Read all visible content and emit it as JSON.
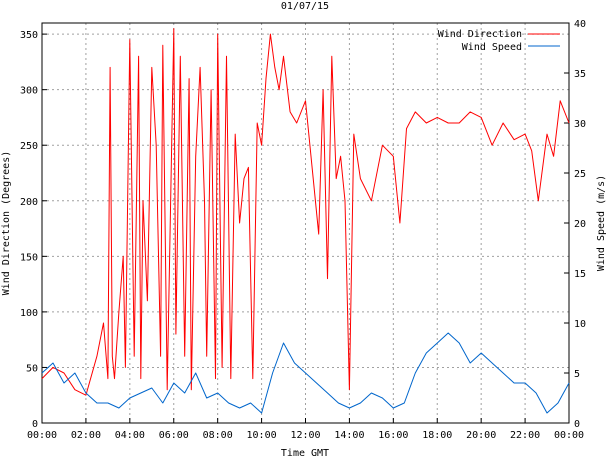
{
  "chart_data": {
    "type": "line",
    "title": "01/07/15",
    "xlabel": "Time GMT",
    "ylabel_left": "Wind Direction (Degrees)",
    "ylabel_right": "Wind Speed (m/s)",
    "x_tick_labels": [
      "00:00",
      "02:00",
      "04:00",
      "06:00",
      "08:00",
      "10:00",
      "12:00",
      "14:00",
      "16:00",
      "18:00",
      "20:00",
      "22:00",
      "00:00"
    ],
    "xlim_hours": [
      0,
      24
    ],
    "ylim_left": [
      0,
      360
    ],
    "ylim_right": [
      0,
      40
    ],
    "y_ticks_left": [
      0,
      50,
      100,
      150,
      200,
      250,
      300,
      350
    ],
    "y_ticks_right": [
      0,
      5,
      10,
      15,
      20,
      25,
      30,
      35,
      40
    ],
    "grid": true,
    "legend_position": "top-right",
    "series": [
      {
        "name": "Wind Direction",
        "axis": "left",
        "color": "#ff0000",
        "x_hours": [
          0,
          0.5,
          1,
          1.5,
          2,
          2.5,
          2.8,
          3,
          3.1,
          3.2,
          3.3,
          3.5,
          3.7,
          3.8,
          4,
          4.2,
          4.4,
          4.5,
          4.6,
          4.8,
          5,
          5.2,
          5.4,
          5.5,
          5.7,
          6,
          6.1,
          6.3,
          6.5,
          6.7,
          6.8,
          7,
          7.2,
          7.4,
          7.5,
          7.7,
          7.9,
          8,
          8.2,
          8.4,
          8.6,
          8.8,
          9,
          9.2,
          9.4,
          9.6,
          9.8,
          10,
          10.2,
          10.4,
          10.6,
          10.8,
          11,
          11.3,
          11.6,
          12,
          12.3,
          12.6,
          12.8,
          13,
          13.2,
          13.4,
          13.6,
          13.8,
          14,
          14.2,
          14.5,
          15,
          15.5,
          16,
          16.3,
          16.6,
          17,
          17.5,
          18,
          18.5,
          19,
          19.5,
          20,
          20.5,
          21,
          21.5,
          22,
          22.3,
          22.6,
          23,
          23.3,
          23.6,
          24
        ],
        "values": [
          40,
          50,
          45,
          30,
          25,
          60,
          90,
          40,
          320,
          60,
          40,
          100,
          150,
          50,
          345,
          60,
          330,
          40,
          200,
          110,
          320,
          250,
          60,
          340,
          30,
          355,
          80,
          330,
          60,
          310,
          30,
          240,
          320,
          200,
          60,
          300,
          40,
          350,
          50,
          330,
          40,
          260,
          180,
          220,
          230,
          40,
          270,
          250,
          310,
          350,
          320,
          300,
          330,
          280,
          270,
          290,
          230,
          170,
          300,
          130,
          330,
          220,
          240,
          200,
          30,
          260,
          220,
          200,
          250,
          240,
          180,
          265,
          280,
          270,
          275,
          270,
          270,
          280,
          275,
          250,
          270,
          255,
          260,
          245,
          200,
          260,
          240,
          290,
          270
        ]
      },
      {
        "name": "Wind Speed",
        "axis": "right",
        "color": "#0066cc",
        "x_hours": [
          0,
          0.5,
          1,
          1.5,
          2,
          2.5,
          3,
          3.5,
          4,
          4.5,
          5,
          5.5,
          6,
          6.5,
          7,
          7.5,
          8,
          8.5,
          9,
          9.5,
          10,
          10.5,
          11,
          11.5,
          12,
          12.5,
          13,
          13.5,
          14,
          14.5,
          15,
          15.5,
          16,
          16.5,
          17,
          17.5,
          18,
          18.5,
          19,
          19.5,
          20,
          20.5,
          21,
          21.5,
          22,
          22.5,
          23,
          23.5,
          24
        ],
        "values": [
          5,
          6,
          4,
          5,
          3,
          2,
          2,
          1.5,
          2.5,
          3,
          3.5,
          2,
          4,
          3,
          5,
          2.5,
          3,
          2,
          1.5,
          2,
          1,
          5,
          8,
          6,
          5,
          4,
          3,
          2,
          1.5,
          2,
          3,
          2.5,
          1.5,
          2,
          5,
          7,
          8,
          9,
          8,
          6,
          7,
          6,
          5,
          4,
          4,
          3,
          1,
          2,
          4
        ]
      }
    ]
  }
}
